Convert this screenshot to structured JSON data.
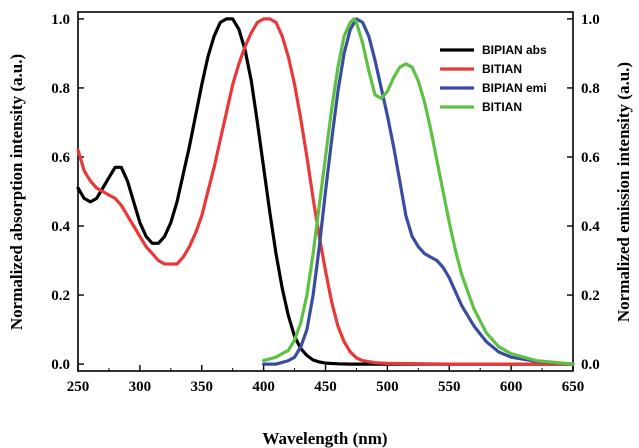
{
  "chart_data": {
    "type": "line",
    "xlabel": "Wavelength (nm)",
    "ylabel_left": "Normalized absorption intensity (a.u.)",
    "ylabel_right": "Normalized emission intensity (a.u.)",
    "xlim": [
      250,
      650
    ],
    "ylim": [
      -0.02,
      1.02
    ],
    "x_ticks": [
      250,
      300,
      350,
      400,
      450,
      500,
      550,
      600,
      650
    ],
    "y_ticks": [
      0.0,
      0.2,
      0.4,
      0.6,
      0.8,
      1.0
    ],
    "x_tick_labels": [
      "250",
      "300",
      "350",
      "400",
      "450",
      "500",
      "550",
      "600",
      "650"
    ],
    "y_tick_labels": [
      "0.0",
      "0.2",
      "0.4",
      "0.6",
      "0.8",
      "1.0"
    ],
    "legend_position": "top-right",
    "series": [
      {
        "name": "BIPIAN abs",
        "color": "#000000",
        "axis": "left",
        "x": [
          250,
          255,
          260,
          265,
          270,
          275,
          280,
          285,
          290,
          295,
          300,
          305,
          310,
          315,
          320,
          325,
          330,
          335,
          340,
          345,
          350,
          355,
          360,
          365,
          370,
          375,
          380,
          385,
          390,
          395,
          400,
          405,
          410,
          415,
          420,
          425,
          430,
          435,
          440,
          445,
          450,
          460,
          470,
          480,
          500,
          550,
          600,
          650
        ],
        "y": [
          0.51,
          0.48,
          0.47,
          0.48,
          0.51,
          0.54,
          0.57,
          0.57,
          0.53,
          0.47,
          0.41,
          0.37,
          0.35,
          0.35,
          0.37,
          0.41,
          0.47,
          0.55,
          0.63,
          0.72,
          0.81,
          0.89,
          0.95,
          0.99,
          1.0,
          1.0,
          0.97,
          0.91,
          0.82,
          0.7,
          0.57,
          0.44,
          0.32,
          0.22,
          0.14,
          0.08,
          0.045,
          0.025,
          0.012,
          0.006,
          0.003,
          0.001,
          0.0,
          0.0,
          0.0,
          0.0,
          0.0,
          0.0
        ]
      },
      {
        "name": "BITIAN",
        "color": "#e8393a",
        "axis": "left",
        "x": [
          250,
          255,
          260,
          265,
          270,
          275,
          280,
          285,
          290,
          295,
          300,
          305,
          310,
          315,
          320,
          325,
          330,
          335,
          340,
          345,
          350,
          355,
          360,
          365,
          370,
          375,
          380,
          385,
          390,
          395,
          400,
          405,
          410,
          415,
          420,
          425,
          430,
          435,
          440,
          445,
          450,
          455,
          460,
          465,
          470,
          475,
          480,
          490,
          500,
          550,
          600,
          650
        ],
        "y": [
          0.62,
          0.56,
          0.53,
          0.51,
          0.5,
          0.49,
          0.48,
          0.46,
          0.43,
          0.4,
          0.37,
          0.34,
          0.32,
          0.3,
          0.29,
          0.29,
          0.29,
          0.31,
          0.34,
          0.38,
          0.43,
          0.5,
          0.57,
          0.65,
          0.73,
          0.81,
          0.87,
          0.92,
          0.96,
          0.99,
          1.0,
          1.0,
          0.99,
          0.95,
          0.89,
          0.81,
          0.71,
          0.6,
          0.48,
          0.37,
          0.27,
          0.18,
          0.11,
          0.065,
          0.035,
          0.018,
          0.01,
          0.004,
          0.002,
          0.0,
          0.0,
          0.0
        ]
      },
      {
        "name": "BIPIAN emi",
        "color": "#3a4ca0",
        "axis": "right",
        "x": [
          400,
          410,
          415,
          420,
          425,
          430,
          435,
          440,
          445,
          450,
          455,
          460,
          465,
          470,
          475,
          480,
          485,
          490,
          495,
          500,
          505,
          510,
          515,
          520,
          525,
          530,
          535,
          540,
          545,
          550,
          555,
          560,
          570,
          580,
          590,
          600,
          620,
          650
        ],
        "y": [
          0.0,
          0.0,
          0.005,
          0.01,
          0.02,
          0.05,
          0.1,
          0.2,
          0.34,
          0.5,
          0.65,
          0.79,
          0.9,
          0.97,
          1.0,
          0.99,
          0.95,
          0.88,
          0.8,
          0.72,
          0.63,
          0.53,
          0.43,
          0.37,
          0.34,
          0.32,
          0.31,
          0.3,
          0.28,
          0.25,
          0.21,
          0.17,
          0.11,
          0.065,
          0.035,
          0.02,
          0.008,
          0.0
        ]
      },
      {
        "name": "BITIAN",
        "color": "#5ec144",
        "axis": "right",
        "x": [
          400,
          410,
          415,
          420,
          425,
          430,
          435,
          440,
          445,
          450,
          455,
          460,
          465,
          470,
          473,
          475,
          480,
          485,
          490,
          495,
          500,
          505,
          510,
          515,
          520,
          525,
          530,
          535,
          540,
          545,
          550,
          555,
          560,
          570,
          580,
          590,
          600,
          620,
          650
        ],
        "y": [
          0.01,
          0.02,
          0.03,
          0.04,
          0.07,
          0.12,
          0.2,
          0.32,
          0.46,
          0.6,
          0.74,
          0.86,
          0.95,
          0.99,
          1.0,
          0.99,
          0.93,
          0.85,
          0.78,
          0.77,
          0.79,
          0.83,
          0.86,
          0.87,
          0.86,
          0.82,
          0.76,
          0.68,
          0.59,
          0.5,
          0.41,
          0.33,
          0.26,
          0.16,
          0.09,
          0.05,
          0.03,
          0.01,
          0.0
        ]
      }
    ]
  }
}
